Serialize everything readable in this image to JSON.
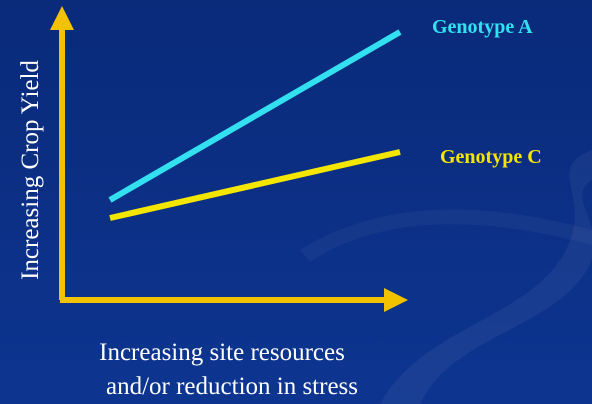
{
  "diagram": {
    "y_axis_label": "Increasing Crop Yield",
    "x_axis_label": [
      "Increasing site resources",
      "and/or reduction in stress"
    ],
    "lines": [
      {
        "label": "Genotype A"
      },
      {
        "label": "Genotype C"
      }
    ]
  }
}
